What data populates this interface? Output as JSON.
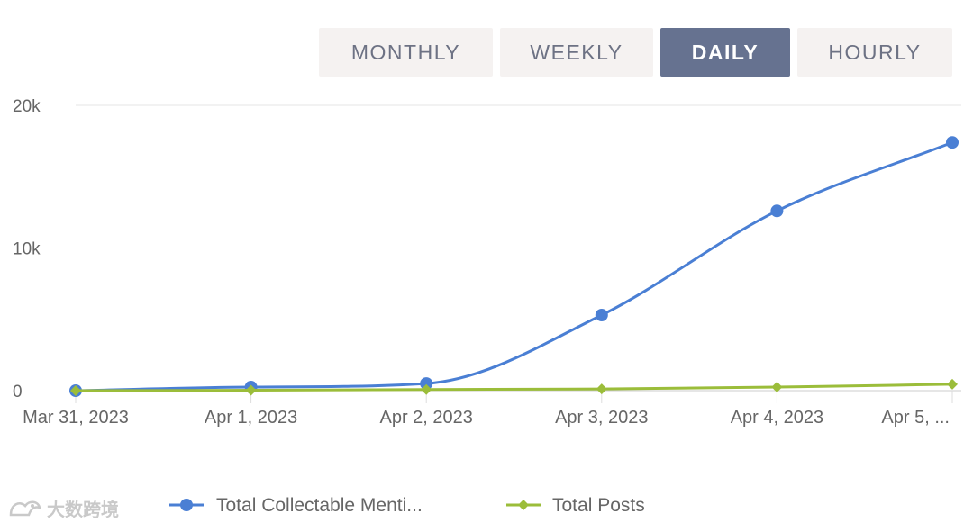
{
  "tabs": [
    {
      "label": "MONTHLY",
      "active": false
    },
    {
      "label": "WEEKLY",
      "active": false
    },
    {
      "label": "DAILY",
      "active": true
    },
    {
      "label": "HOURLY",
      "active": false
    }
  ],
  "colors": {
    "series1": "#4a7fd4",
    "series2": "#9bbd3a",
    "grid": "#e6e6e6",
    "text": "#666666"
  },
  "watermark": {
    "text": "大数跨境",
    "icon": "bird-logo-icon"
  },
  "chart_data": {
    "type": "line",
    "categories": [
      "Mar 31, 2023",
      "Apr 1, 2023",
      "Apr 2, 2023",
      "Apr 3, 2023",
      "Apr 4, 2023",
      "Apr 5, ..."
    ],
    "series": [
      {
        "name": "Total Collectable Menti...",
        "values": [
          0,
          250,
          500,
          5300,
          12600,
          17400
        ],
        "color": "#4a7fd4",
        "marker": "circle"
      },
      {
        "name": "Total Posts",
        "values": [
          0,
          30,
          80,
          120,
          250,
          450
        ],
        "color": "#9bbd3a",
        "marker": "diamond"
      }
    ],
    "yticks": [
      "0",
      "10k",
      "20k"
    ],
    "ytick_values": [
      0,
      10000,
      20000
    ],
    "ylim": [
      0,
      20000
    ],
    "grid": true,
    "legend_position": "bottom"
  }
}
